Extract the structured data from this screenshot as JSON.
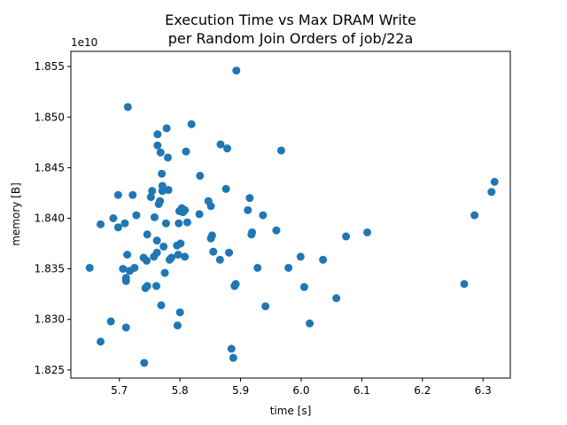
{
  "chart_data": {
    "type": "scatter",
    "title_line1": "Execution Time vs Max DRAM Write",
    "title_line2": "per Random Join Orders of job/22a",
    "xlabel": "time [s]",
    "ylabel": "memory [B]",
    "y_offset_label": "1e10",
    "xlim": [
      5.62,
      6.345
    ],
    "ylim": [
      1.8242,
      1.8565
    ],
    "x_ticks": [
      5.7,
      5.8,
      5.9,
      6.0,
      6.1,
      6.2,
      6.3
    ],
    "x_tick_labels": [
      "5.7",
      "5.8",
      "5.9",
      "6.0",
      "6.1",
      "6.2",
      "6.3"
    ],
    "y_ticks": [
      1.825,
      1.83,
      1.835,
      1.84,
      1.845,
      1.85,
      1.855
    ],
    "y_tick_labels": [
      "1.825",
      "1.830",
      "1.835",
      "1.840",
      "1.845",
      "1.850",
      "1.855"
    ],
    "grid": false,
    "marker_color": "#1f77b4",
    "points": [
      [
        5.651,
        1.8351
      ],
      [
        5.669,
        1.8278
      ],
      [
        5.669,
        1.8394
      ],
      [
        5.686,
        1.8298
      ],
      [
        5.69,
        1.84
      ],
      [
        5.698,
        1.8391
      ],
      [
        5.698,
        1.8423
      ],
      [
        5.706,
        1.835
      ],
      [
        5.709,
        1.8395
      ],
      [
        5.711,
        1.8292
      ],
      [
        5.711,
        1.8341
      ],
      [
        5.711,
        1.8338
      ],
      [
        5.713,
        1.8364
      ],
      [
        5.714,
        1.851
      ],
      [
        5.717,
        1.8348
      ],
      [
        5.722,
        1.8423
      ],
      [
        5.725,
        1.8351
      ],
      [
        5.728,
        1.8403
      ],
      [
        5.74,
        1.8361
      ],
      [
        5.741,
        1.8257
      ],
      [
        5.743,
        1.8331
      ],
      [
        5.745,
        1.8358
      ],
      [
        5.746,
        1.8333
      ],
      [
        5.746,
        1.8384
      ],
      [
        5.752,
        1.8421
      ],
      [
        5.754,
        1.8427
      ],
      [
        5.757,
        1.8362
      ],
      [
        5.758,
        1.8401
      ],
      [
        5.761,
        1.8333
      ],
      [
        5.762,
        1.8378
      ],
      [
        5.762,
        1.8366
      ],
      [
        5.763,
        1.8483
      ],
      [
        5.763,
        1.8472
      ],
      [
        5.765,
        1.8414
      ],
      [
        5.767,
        1.8417
      ],
      [
        5.768,
        1.8465
      ],
      [
        5.769,
        1.8314
      ],
      [
        5.77,
        1.8444
      ],
      [
        5.771,
        1.8427
      ],
      [
        5.771,
        1.8432
      ],
      [
        5.773,
        1.8372
      ],
      [
        5.775,
        1.8346
      ],
      [
        5.777,
        1.8395
      ],
      [
        5.778,
        1.8489
      ],
      [
        5.78,
        1.846
      ],
      [
        5.781,
        1.8428
      ],
      [
        5.783,
        1.8359
      ],
      [
        5.786,
        1.8361
      ],
      [
        5.795,
        1.8373
      ],
      [
        5.796,
        1.8294
      ],
      [
        5.797,
        1.8364
      ],
      [
        5.798,
        1.8395
      ],
      [
        5.799,
        1.8407
      ],
      [
        5.8,
        1.8307
      ],
      [
        5.801,
        1.8375
      ],
      [
        5.803,
        1.841
      ],
      [
        5.805,
        1.8406
      ],
      [
        5.808,
        1.8362
      ],
      [
        5.808,
        1.8408
      ],
      [
        5.81,
        1.8466
      ],
      [
        5.812,
        1.8396
      ],
      [
        5.819,
        1.8493
      ],
      [
        5.832,
        1.8404
      ],
      [
        5.833,
        1.8442
      ],
      [
        5.847,
        1.8417
      ],
      [
        5.851,
        1.838
      ],
      [
        5.851,
        1.8412
      ],
      [
        5.853,
        1.8383
      ],
      [
        5.855,
        1.8367
      ],
      [
        5.866,
        1.8359
      ],
      [
        5.867,
        1.8473
      ],
      [
        5.876,
        1.8429
      ],
      [
        5.878,
        1.8469
      ],
      [
        5.881,
        1.8366
      ],
      [
        5.885,
        1.8271
      ],
      [
        5.888,
        1.8262
      ],
      [
        5.89,
        1.8333
      ],
      [
        5.892,
        1.8335
      ],
      [
        5.893,
        1.8546
      ],
      [
        5.912,
        1.8408
      ],
      [
        5.915,
        1.842
      ],
      [
        5.918,
        1.8384
      ],
      [
        5.919,
        1.8386
      ],
      [
        5.928,
        1.8351
      ],
      [
        5.937,
        1.8403
      ],
      [
        5.941,
        1.8313
      ],
      [
        5.959,
        1.8388
      ],
      [
        5.967,
        1.8467
      ],
      [
        5.979,
        1.8351
      ],
      [
        5.999,
        1.8362
      ],
      [
        6.005,
        1.8332
      ],
      [
        6.014,
        1.8296
      ],
      [
        6.036,
        1.8359
      ],
      [
        6.058,
        1.8321
      ],
      [
        6.074,
        1.8382
      ],
      [
        6.109,
        1.8386
      ],
      [
        6.269,
        1.8335
      ],
      [
        6.286,
        1.8403
      ],
      [
        6.314,
        1.8426
      ],
      [
        6.319,
        1.8436
      ]
    ]
  }
}
